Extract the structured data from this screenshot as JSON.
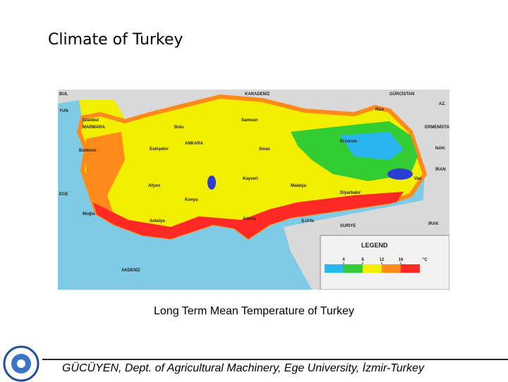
{
  "title": "Climate of Turkey",
  "map": {
    "labels": [
      "BUL",
      "YUN",
      "KARADENİZ",
      "GÜRCİSTAN",
      "AZ.",
      "ERMENİSTAN",
      "NAH.",
      "İRAN",
      "IRAK",
      "SURİYE",
      "AKDENİZ",
      "EGE",
      "İstanbul",
      "MARMARA",
      "Bolu",
      "Samsun",
      "Rize",
      "ANKARA",
      "Eskişehir",
      "Balıkesir",
      "Sivas",
      "Erzurum",
      "Afyon",
      "Kayseri",
      "Malatya",
      "Konya",
      "Diyarbakır",
      "Van",
      "Muğla",
      "Antalya",
      "Adana",
      "Ş.Urfa"
    ],
    "legend": {
      "title": "LEGEND",
      "ticks": [
        4,
        8,
        12,
        16
      ],
      "unit": "°C",
      "colors": [
        "#29b6f0",
        "#33cc33",
        "#f2ee00",
        "#ff8a1c",
        "#ff2a24"
      ]
    }
  },
  "caption": "Long Term Mean Temperature of Turkey",
  "footer": "GÜCÜYEN, Dept. of Agricultural  Machinery, Ege University, İzmir-Turkey"
}
